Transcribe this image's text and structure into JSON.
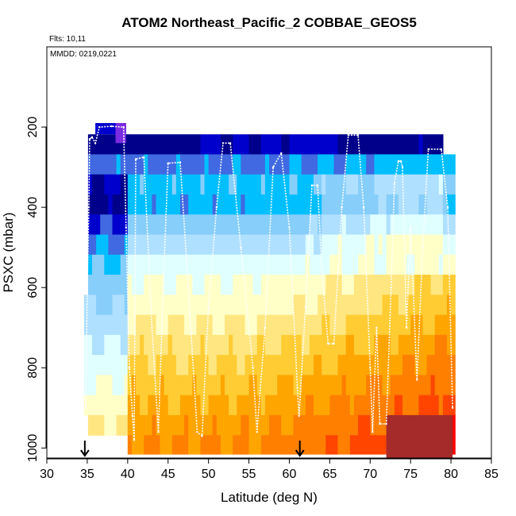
{
  "chart_data": {
    "type": "heatmap",
    "title": "ATOM2 Northeast_Pacific_2 COBBAE_GEOS5",
    "flights_label": "Flts: 10,11",
    "date_label": "MMDD: 0219,0221",
    "xlabel": "Latitude (deg N)",
    "ylabel": "PSXC (mbar)",
    "xlim": [
      30,
      85
    ],
    "ylim": [
      1025,
      0
    ],
    "xticks": [
      30,
      35,
      40,
      45,
      50,
      55,
      60,
      65,
      70,
      75,
      80,
      85
    ],
    "yticks": [
      200,
      400,
      600,
      800,
      1000
    ],
    "arrows_at_latitude": [
      34.7,
      61.3
    ],
    "colors": {
      "c1": "#00008b",
      "c2": "#0000cd",
      "c3": "#4169e1",
      "c4": "#00bfff",
      "c5": "#87cefa",
      "c6": "#b0e0ff",
      "c7": "#e0ffff",
      "c8": "#ffffc8",
      "c9": "#ffe680",
      "c10": "#ffcc33",
      "c11": "#ffa500",
      "c12": "#ff7f00",
      "c13": "#ff4500",
      "c14": "#ff0000",
      "c15": "#a52a2a",
      "purple": "#7b2be2"
    },
    "flight_path": [
      [
        34.8,
        900
      ],
      [
        34.9,
        780
      ],
      [
        35.0,
        600
      ],
      [
        35.2,
        400
      ],
      [
        35.3,
        230
      ],
      [
        35.6,
        225
      ],
      [
        36.0,
        240
      ],
      [
        36.5,
        200
      ],
      [
        38.0,
        198
      ],
      [
        39.5,
        200
      ],
      [
        39.8,
        450
      ],
      [
        40.2,
        800
      ],
      [
        40.6,
        920
      ],
      [
        40.8,
        980
      ],
      [
        41.0,
        280
      ],
      [
        42.0,
        275
      ],
      [
        43.0,
        700
      ],
      [
        43.8,
        960
      ],
      [
        44.4,
        600
      ],
      [
        45.0,
        290
      ],
      [
        46.5,
        288
      ],
      [
        47.5,
        600
      ],
      [
        48.6,
        960
      ],
      [
        49.2,
        970
      ],
      [
        50.0,
        650
      ],
      [
        51.0,
        400
      ],
      [
        51.8,
        240
      ],
      [
        52.7,
        240
      ],
      [
        54.0,
        500
      ],
      [
        55.5,
        800
      ],
      [
        56.0,
        960
      ],
      [
        57.0,
        700
      ],
      [
        58.0,
        300
      ],
      [
        59.0,
        265
      ],
      [
        60.0,
        450
      ],
      [
        61.0,
        850
      ],
      [
        61.2,
        920
      ],
      [
        62.0,
        650
      ],
      [
        62.8,
        345
      ],
      [
        63.5,
        345
      ],
      [
        64.0,
        550
      ],
      [
        64.8,
        740
      ],
      [
        65.5,
        740
      ],
      [
        66.5,
        400
      ],
      [
        67.3,
        220
      ],
      [
        68.5,
        220
      ],
      [
        69.2,
        400
      ],
      [
        70.0,
        800
      ],
      [
        70.3,
        960
      ],
      [
        70.8,
        700
      ],
      [
        71.2,
        940
      ],
      [
        72.0,
        940
      ],
      [
        72.6,
        600
      ],
      [
        73.0,
        340
      ],
      [
        73.5,
        285
      ],
      [
        73.8,
        285
      ],
      [
        74.0,
        300
      ],
      [
        74.5,
        700
      ],
      [
        75.0,
        450
      ],
      [
        75.8,
        830
      ],
      [
        76.5,
        500
      ],
      [
        77.2,
        255
      ],
      [
        78.8,
        255
      ],
      [
        79.6,
        400
      ],
      [
        80.2,
        900
      ]
    ]
  }
}
